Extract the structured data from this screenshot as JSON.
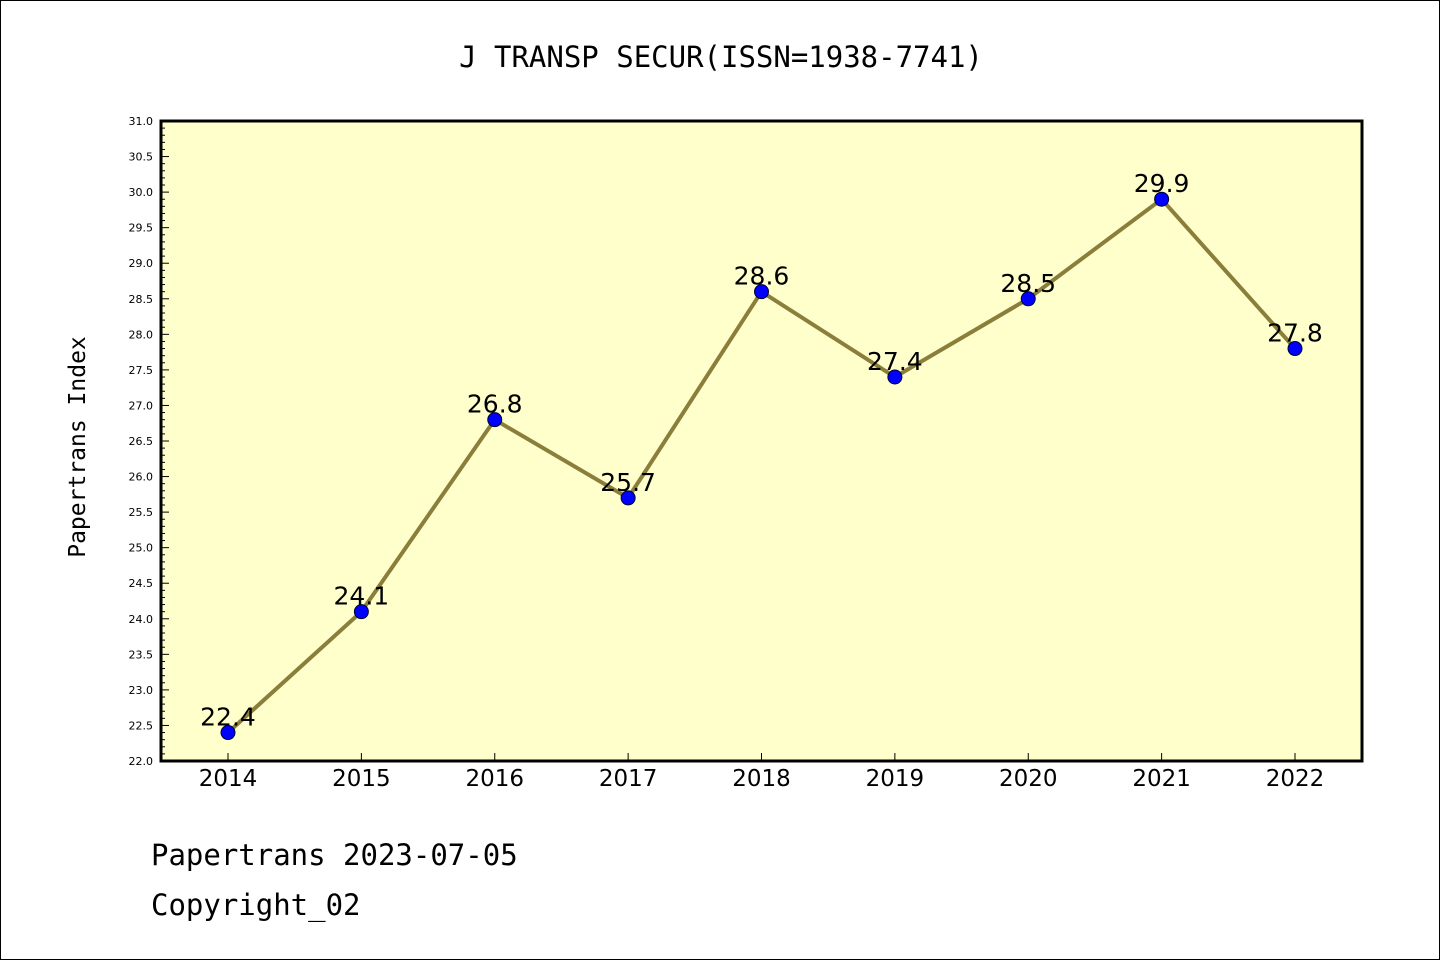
{
  "chart_data": {
    "type": "line",
    "title": "J TRANSP SECUR(ISSN=1938-7741)",
    "ylabel": "Papertrans Index",
    "xlabel": "",
    "categories": [
      "2014",
      "2015",
      "2016",
      "2017",
      "2018",
      "2019",
      "2020",
      "2021",
      "2022"
    ],
    "values": [
      22.4,
      24.1,
      26.8,
      25.7,
      28.6,
      27.4,
      28.5,
      29.9,
      27.8
    ],
    "value_labels": [
      "22.4",
      "24.1",
      "26.8",
      "25.7",
      "28.6",
      "27.4",
      "28.5",
      "29.9",
      "27.8"
    ],
    "ylim": [
      22.0,
      31.0
    ],
    "yticks": [
      "22.0",
      "22.5",
      "23.0",
      "23.5",
      "24.0",
      "24.5",
      "25.0",
      "25.5",
      "26.0",
      "26.5",
      "27.0",
      "27.5",
      "28.0",
      "28.5",
      "29.0",
      "29.5",
      "30.0",
      "30.5",
      "31.0"
    ],
    "grid": false,
    "colors": {
      "plot_background": "#ffffcc",
      "line": "#8b7d3a",
      "marker": "#0000ff"
    }
  },
  "footer": {
    "line1": "Papertrans 2023-07-05",
    "line2": "Copyright_02"
  }
}
